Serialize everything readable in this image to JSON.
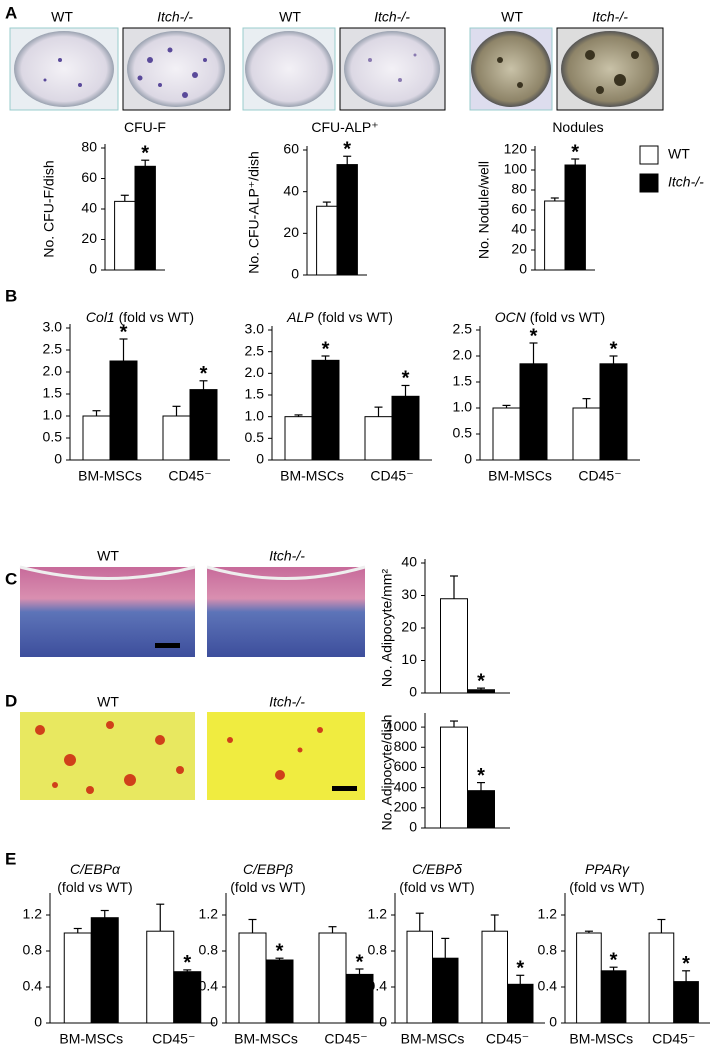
{
  "panels": [
    {
      "letter": "A",
      "labels": [
        "WT",
        "Itch-/-",
        "WT",
        "Itch-/-",
        "WT",
        "Itch-/-"
      ]
    },
    {
      "letter": "B"
    },
    {
      "letter": "C",
      "labels": [
        "WT",
        "Itch-/-"
      ]
    },
    {
      "letter": "D",
      "labels": [
        "WT",
        "Itch-/-"
      ]
    },
    {
      "letter": "E"
    }
  ],
  "chart_data": [
    {
      "type": "bar",
      "title": "CFU-F",
      "ylabel": "No. CFU-F/dish",
      "categories": [
        null
      ],
      "series": [
        {
          "name": "WT",
          "color": "#ffffff",
          "values": [
            45
          ],
          "errors": [
            4
          ],
          "annotations": [
            null
          ]
        },
        {
          "name": "Itch-/-",
          "color": "#000000",
          "values": [
            68
          ],
          "errors": [
            4
          ],
          "annotations": [
            "*"
          ]
        }
      ],
      "ylim": [
        0,
        80
      ],
      "yticks": [
        0,
        20,
        40,
        60,
        80
      ],
      "legend": "right"
    },
    {
      "type": "bar",
      "title": "CFU-ALP⁺",
      "ylabel": "No. CFU-ALP⁺/dish",
      "categories": [
        null
      ],
      "series": [
        {
          "color": "#ffffff",
          "values": [
            33
          ],
          "errors": [
            2
          ],
          "annotations": [
            null
          ]
        },
        {
          "color": "#000000",
          "values": [
            53
          ],
          "errors": [
            4
          ],
          "annotations": [
            "*"
          ]
        }
      ],
      "ylim": [
        0,
        60
      ],
      "yticks": [
        0,
        20,
        40,
        60
      ]
    },
    {
      "type": "bar",
      "title": "Nodules",
      "ylabel": "No. Nodule/well",
      "categories": [
        null
      ],
      "series": [
        {
          "color": "#ffffff",
          "values": [
            69
          ],
          "errors": [
            3
          ],
          "annotations": [
            null
          ]
        },
        {
          "color": "#000000",
          "values": [
            105
          ],
          "errors": [
            6
          ],
          "annotations": [
            "*"
          ]
        }
      ],
      "ylim": [
        0,
        120
      ],
      "yticks": [
        0,
        20,
        40,
        60,
        80,
        100,
        120
      ]
    },
    {
      "type": "bar",
      "gene": "Col1",
      "title": " (fold vs WT)",
      "categories": [
        "BM-MSCs",
        "CD45⁻"
      ],
      "series": [
        {
          "color": "#ffffff",
          "values": [
            1,
            1
          ],
          "errors": [
            0.12,
            0.22
          ],
          "annotations": [
            null,
            null
          ]
        },
        {
          "color": "#000000",
          "values": [
            2.25,
            1.6
          ],
          "errors": [
            0.5,
            0.2
          ],
          "annotations": [
            "*",
            "*"
          ]
        }
      ],
      "ylim": [
        0,
        3
      ],
      "yticks": [
        0,
        0.5,
        {
          "value": 1,
          "label": "1.0"
        },
        1.5,
        {
          "value": 2,
          "label": "2.0"
        },
        2.5,
        {
          "value": 3,
          "label": "3.0"
        }
      ]
    },
    {
      "type": "bar",
      "gene": "ALP",
      "title": " (fold vs WT)",
      "categories": [
        "BM-MSCs",
        "CD45⁻"
      ],
      "series": [
        {
          "color": "#ffffff",
          "values": [
            1,
            1
          ],
          "errors": [
            0.04,
            0.22
          ],
          "annotations": [
            null,
            null
          ]
        },
        {
          "color": "#000000",
          "values": [
            2.3,
            1.47
          ],
          "errors": [
            0.1,
            0.25
          ],
          "annotations": [
            "*",
            "*"
          ]
        }
      ],
      "ylim": [
        0,
        3
      ],
      "yticks": [
        0,
        0.5,
        {
          "value": 1,
          "label": "1.0"
        },
        1.5,
        {
          "value": 2,
          "label": "2.0"
        },
        2.5,
        {
          "value": 3,
          "label": "3.0"
        }
      ]
    },
    {
      "type": "bar",
      "gene": "OCN",
      "title": " (fold vs WT)",
      "categories": [
        "BM-MSCs",
        "CD45⁻"
      ],
      "series": [
        {
          "color": "#ffffff",
          "values": [
            1,
            1
          ],
          "errors": [
            0.05,
            0.18
          ],
          "annotations": [
            null,
            null
          ]
        },
        {
          "color": "#000000",
          "values": [
            1.85,
            1.85
          ],
          "errors": [
            0.4,
            0.15
          ],
          "annotations": [
            "*",
            "*"
          ]
        }
      ],
      "ylim": [
        0,
        2.5
      ],
      "yticks": [
        0,
        0.5,
        {
          "value": 1,
          "label": "1.0"
        },
        1.5,
        {
          "value": 2,
          "label": "2.0"
        },
        2.5
      ]
    },
    {
      "type": "bar",
      "ylabel": "No. Adipocyte/mm²",
      "categories": [
        null
      ],
      "series": [
        {
          "color": "#ffffff",
          "values": [
            29
          ],
          "errors": [
            7
          ],
          "annotations": [
            null
          ]
        },
        {
          "color": "#000000",
          "values": [
            1
          ],
          "errors": [
            0.5
          ],
          "annotations": [
            "*"
          ]
        }
      ],
      "ylim": [
        0,
        40
      ],
      "yticks": [
        0,
        10,
        20,
        30,
        40
      ]
    },
    {
      "type": "bar",
      "ylabel": "No. Adipocyte/dish",
      "categories": [
        null
      ],
      "series": [
        {
          "color": "#ffffff",
          "values": [
            1000
          ],
          "errors": [
            60
          ],
          "annotations": [
            null
          ]
        },
        {
          "color": "#000000",
          "values": [
            370
          ],
          "errors": [
            80
          ],
          "annotations": [
            "*"
          ]
        }
      ],
      "ylim": [
        0,
        1100
      ],
      "yticks": [
        0,
        200,
        400,
        600,
        800,
        1000
      ]
    },
    {
      "type": "bar",
      "gene": "C/EBPα",
      "title": "(fold vs WT)",
      "categories": [
        "BM-MSCs",
        "CD45⁻"
      ],
      "series": [
        {
          "color": "#ffffff",
          "values": [
            1,
            1.02
          ],
          "errors": [
            0.05,
            0.3
          ],
          "annotations": [
            null,
            null
          ]
        },
        {
          "color": "#000000",
          "values": [
            1.17,
            0.57
          ],
          "errors": [
            0.08,
            0.02
          ],
          "annotations": [
            null,
            "*"
          ]
        }
      ],
      "ylim": [
        0,
        1.4
      ],
      "yticks": [
        0,
        0.4,
        0.8,
        1.2
      ]
    },
    {
      "type": "bar",
      "gene": "C/EBPβ",
      "title": "(fold vs WT)",
      "categories": [
        "BM-MSCs",
        "CD45⁻"
      ],
      "series": [
        {
          "color": "#ffffff",
          "values": [
            1,
            1
          ],
          "errors": [
            0.15,
            0.07
          ],
          "annotations": [
            null,
            null
          ]
        },
        {
          "color": "#000000",
          "values": [
            0.7,
            0.54
          ],
          "errors": [
            0.02,
            0.06
          ],
          "annotations": [
            "*",
            "*"
          ]
        }
      ],
      "ylim": [
        0,
        1.4
      ],
      "yticks": [
        0,
        0.4,
        0.8,
        1.2
      ]
    },
    {
      "type": "bar",
      "gene": "C/EBPδ",
      "title": "(fold vs WT)",
      "categories": [
        "BM-MSCs",
        "CD45⁻"
      ],
      "series": [
        {
          "color": "#ffffff",
          "values": [
            1.02,
            1.02
          ],
          "errors": [
            0.2,
            0.18
          ],
          "annotations": [
            null,
            null
          ]
        },
        {
          "color": "#000000",
          "values": [
            0.72,
            0.43
          ],
          "errors": [
            0.22,
            0.1
          ],
          "annotations": [
            null,
            "*"
          ]
        }
      ],
      "ylim": [
        0,
        1.4
      ],
      "yticks": [
        0,
        0.4,
        0.8,
        1.2
      ]
    },
    {
      "type": "bar",
      "gene": "PPARγ",
      "title": "(fold vs WT)",
      "categories": [
        "BM-MSCs",
        "CD45⁻"
      ],
      "series": [
        {
          "color": "#ffffff",
          "values": [
            1,
            1
          ],
          "errors": [
            0.02,
            0.15
          ],
          "annotations": [
            null,
            null
          ]
        },
        {
          "color": "#000000",
          "values": [
            0.58,
            0.46
          ],
          "errors": [
            0.04,
            0.12
          ],
          "annotations": [
            "*",
            "*"
          ]
        }
      ],
      "ylim": [
        0,
        1.4
      ],
      "yticks": [
        0,
        0.4,
        0.8,
        1.2
      ]
    }
  ]
}
